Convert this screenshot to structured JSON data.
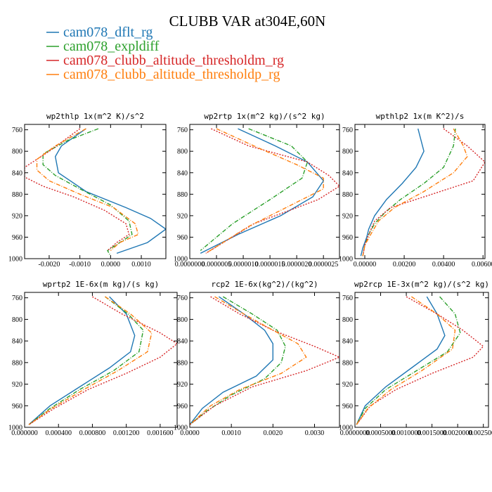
{
  "title": "CLUBB VAR at304E,60N",
  "legend": [
    {
      "name": "cam078_dflt_rg",
      "color": "#1f77b4",
      "dash": ""
    },
    {
      "name": "cam078_expldiff",
      "color": "#2ca02c",
      "dash": "6,2,1,2"
    },
    {
      "name": "cam078_clubb_altitude_thresholdm_rg",
      "color": "#d62728",
      "dash": "2,2"
    },
    {
      "name": "cam078_clubb_altitude_thresholdp_rg",
      "color": "#ff7f0e",
      "dash": "6,2,1,2"
    }
  ],
  "chart_data": [
    {
      "type": "line",
      "title": "wp2thlp  1x(m^2 K)/s^2",
      "xlim": [
        -0.0028,
        0.0018
      ],
      "ylim": [
        1000,
        750
      ],
      "xticks": [
        -0.002,
        -0.001,
        0.0,
        0.001
      ],
      "xtick_labels": [
        "-0.0020",
        "-0.0010",
        "0.0000",
        "0.0010"
      ],
      "yticks": [
        760,
        800,
        840,
        880,
        920,
        960,
        1000
      ],
      "series": [
        {
          "name": "cam078_dflt_rg",
          "x": [
            -0.0008,
            -0.0016,
            -0.0018,
            -0.0017,
            -0.0008,
            0.0005,
            0.0013,
            0.0018,
            0.0012,
            0.0002
          ],
          "y": [
            758,
            790,
            810,
            840,
            875,
            905,
            925,
            945,
            970,
            990
          ]
        },
        {
          "name": "cam078_expldiff",
          "x": [
            -0.0004,
            -0.0014,
            -0.0022,
            -0.0022,
            -0.0018,
            -0.001,
            0.0,
            0.0006,
            0.0007,
            0.0003,
            -0.0001,
            0.0
          ],
          "y": [
            758,
            780,
            805,
            825,
            845,
            870,
            900,
            930,
            955,
            970,
            985,
            995
          ]
        },
        {
          "name": "cam078_clubb_altitude_thresholdm_rg",
          "x": [
            -0.001,
            -0.002,
            -0.0028,
            -0.0028,
            -0.0022,
            -0.0012,
            -0.0002,
            0.0005,
            0.0006,
            0.0002,
            -0.0001
          ],
          "y": [
            758,
            800,
            830,
            848,
            865,
            885,
            910,
            935,
            955,
            970,
            985
          ]
        },
        {
          "name": "cam078_clubb_altitude_thresholdp_rg",
          "x": [
            -0.0008,
            -0.0018,
            -0.0024,
            -0.0024,
            -0.002,
            -0.001,
            0.0001,
            0.0008,
            0.0009,
            0.0003,
            0.0
          ],
          "y": [
            758,
            790,
            815,
            835,
            855,
            880,
            905,
            935,
            955,
            970,
            985
          ]
        }
      ]
    },
    {
      "type": "line",
      "title": "wp2rtp  1x(m^2 kg)/(s^2 kg)",
      "xlim": [
        0.0,
        2.8e-06
      ],
      "ylim": [
        1000,
        750
      ],
      "xticks": [
        0.0,
        5e-07,
        1e-06,
        1.5e-06,
        2e-06,
        2.5e-06
      ],
      "xtick_labels": [
        "0.0000000",
        "0.0000005",
        "0.0000010",
        "0.0000015",
        "0.0000020",
        "0.0000025"
      ],
      "yticks": [
        760,
        800,
        840,
        880,
        920,
        960,
        1000
      ],
      "series": [
        {
          "name": "cam078_dflt_rg",
          "x": [
            9e-07,
            1.6e-06,
            2.2e-06,
            2.5e-06,
            2.3e-06,
            1.7e-06,
            9e-07,
            2e-07
          ],
          "y": [
            758,
            790,
            820,
            855,
            885,
            920,
            955,
            990
          ]
        },
        {
          "name": "cam078_expldiff",
          "x": [
            1.1e-06,
            1.9e-06,
            2.2e-06,
            2.1e-06,
            1.5e-06,
            8e-07,
            2e-07
          ],
          "y": [
            758,
            790,
            820,
            850,
            890,
            935,
            985
          ]
        },
        {
          "name": "cam078_clubb_altitude_thresholdm_rg",
          "x": [
            4e-07,
            1.1e-06,
            2.2e-06,
            2.6e-06,
            2.8e-06,
            2.4e-06,
            1.2e-06,
            3e-07
          ],
          "y": [
            758,
            790,
            820,
            845,
            865,
            890,
            935,
            990
          ]
        },
        {
          "name": "cam078_clubb_altitude_thresholdp_rg",
          "x": [
            5e-07,
            1.2e-06,
            2e-06,
            2.5e-06,
            2.5e-06,
            2e-06,
            1.1e-06,
            3e-07
          ],
          "y": [
            758,
            790,
            825,
            850,
            870,
            895,
            940,
            990
          ]
        }
      ]
    },
    {
      "type": "line",
      "title": "wpthlp2  1x(m K^2)/s",
      "xlim": [
        -0.0005,
        0.0061
      ],
      "ylim": [
        1000,
        750
      ],
      "xticks": [
        0.0,
        0.002,
        0.004,
        0.006
      ],
      "xtick_labels": [
        "0.00000",
        "0.00200",
        "0.00400",
        "0.00600"
      ],
      "yticks": [
        760,
        800,
        840,
        880,
        920,
        960,
        1000
      ],
      "series": [
        {
          "name": "cam078_dflt_rg",
          "x": [
            0.0027,
            0.003,
            0.0026,
            0.0019,
            0.0011,
            0.0005,
            0.0002,
            0.0001,
            -0.0001,
            -0.0002
          ],
          "y": [
            758,
            800,
            830,
            860,
            890,
            920,
            945,
            960,
            980,
            995
          ]
        },
        {
          "name": "cam078_expldiff",
          "x": [
            0.0046,
            0.0045,
            0.004,
            0.003,
            0.0018,
            0.001,
            0.0005,
            0.0002,
            0.0,
            -0.0001
          ],
          "y": [
            758,
            790,
            830,
            860,
            890,
            915,
            935,
            955,
            975,
            995
          ]
        },
        {
          "name": "cam078_clubb_altitude_thresholdm_rg",
          "x": [
            0.004,
            0.0052,
            0.0061,
            0.0055,
            0.003,
            0.0013,
            0.0005,
            0.0002,
            0.0,
            -0.0001
          ],
          "y": [
            758,
            790,
            820,
            855,
            885,
            905,
            930,
            955,
            975,
            995
          ]
        },
        {
          "name": "cam078_clubb_altitude_thresholdp_rg",
          "x": [
            0.0045,
            0.005,
            0.0052,
            0.0045,
            0.003,
            0.0015,
            0.0007,
            0.0003,
            0.0,
            -0.0001
          ],
          "y": [
            758,
            790,
            810,
            840,
            875,
            905,
            930,
            955,
            975,
            995
          ]
        }
      ]
    },
    {
      "type": "line",
      "title": "wprtp2  1E-6x(m kg)/(s kg)",
      "xlim": [
        0.0,
        0.0018
      ],
      "ylim": [
        1000,
        750
      ],
      "xticks": [
        0.0,
        0.0004,
        0.0008,
        0.0012,
        0.0016
      ],
      "xtick_labels": [
        "0.000000",
        "0.000400",
        "0.000800",
        "0.001200",
        "0.001600"
      ],
      "yticks": [
        760,
        800,
        840,
        880,
        920,
        960,
        1000
      ],
      "series": [
        {
          "name": "cam078_dflt_rg",
          "x": [
            0.001,
            0.0012,
            0.0013,
            0.00125,
            0.001,
            0.00065,
            0.0003,
            5e-05
          ],
          "y": [
            758,
            790,
            830,
            860,
            890,
            925,
            960,
            995
          ]
        },
        {
          "name": "cam078_expldiff",
          "x": [
            0.00095,
            0.00122,
            0.0014,
            0.00135,
            0.00105,
            0.00065,
            0.0003,
            5e-05
          ],
          "y": [
            758,
            790,
            820,
            860,
            895,
            930,
            965,
            995
          ]
        },
        {
          "name": "cam078_clubb_altitude_thresholdm_rg",
          "x": [
            0.0008,
            0.00115,
            0.0016,
            0.0018,
            0.0016,
            0.0012,
            0.00075,
            0.00035,
            5e-05
          ],
          "y": [
            758,
            790,
            825,
            845,
            870,
            900,
            930,
            965,
            995
          ]
        },
        {
          "name": "cam078_clubb_altitude_thresholdp_rg",
          "x": [
            0.00095,
            0.00125,
            0.0015,
            0.00145,
            0.0011,
            0.0007,
            0.00032,
            5e-05
          ],
          "y": [
            758,
            790,
            825,
            860,
            895,
            930,
            965,
            995
          ]
        }
      ]
    },
    {
      "type": "line",
      "title": "rcp2  1E-6x(kg^2)/(kg^2)",
      "xlim": [
        0.0,
        0.0036
      ],
      "ylim": [
        1000,
        750
      ],
      "xticks": [
        0.0,
        0.001,
        0.002,
        0.003
      ],
      "xtick_labels": [
        "0.0000",
        "0.0010",
        "0.0020",
        "0.0030"
      ],
      "yticks": [
        760,
        800,
        840,
        880,
        920,
        960,
        1000
      ],
      "series": [
        {
          "name": "cam078_dflt_rg",
          "x": [
            0.0007,
            0.0013,
            0.0018,
            0.002,
            0.002,
            0.0016,
            0.0008,
            0.0003,
            0.0
          ],
          "y": [
            758,
            790,
            820,
            845,
            875,
            905,
            935,
            965,
            995
          ]
        },
        {
          "name": "cam078_expldiff",
          "x": [
            0.0008,
            0.0015,
            0.0021,
            0.0023,
            0.0022,
            0.0018,
            0.001,
            0.0004,
            0.0
          ],
          "y": [
            758,
            790,
            820,
            850,
            880,
            910,
            940,
            970,
            995
          ]
        },
        {
          "name": "cam078_clubb_altitude_thresholdm_rg",
          "x": [
            0.0005,
            0.0012,
            0.002,
            0.003,
            0.0036,
            0.0028,
            0.0015,
            0.0006,
            0.0
          ],
          "y": [
            758,
            790,
            820,
            850,
            870,
            895,
            925,
            960,
            995
          ]
        },
        {
          "name": "cam078_clubb_altitude_thresholdp_rg",
          "x": [
            0.0006,
            0.0013,
            0.002,
            0.0026,
            0.0028,
            0.0022,
            0.0012,
            0.0005,
            0.0
          ],
          "y": [
            758,
            790,
            820,
            845,
            870,
            900,
            930,
            960,
            995
          ]
        }
      ]
    },
    {
      "type": "line",
      "title": "wp2rcp  1E-3x(m^2 kg)/(s^2 kg)",
      "xlim": [
        0.0,
        0.0026
      ],
      "ylim": [
        1000,
        750
      ],
      "xticks": [
        0.0,
        0.0005,
        0.001,
        0.0015,
        0.002,
        0.0025
      ],
      "xtick_labels": [
        "0.0000000",
        "0.0005000",
        "0.0010000",
        "0.0015000",
        "0.0020000",
        "0.0025000"
      ],
      "yticks": [
        760,
        800,
        840,
        880,
        920,
        960,
        1000
      ],
      "series": [
        {
          "name": "cam078_dflt_rg",
          "x": [
            0.0014,
            0.0016,
            0.00175,
            0.0016,
            0.0011,
            0.0006,
            0.0002,
            3e-05
          ],
          "y": [
            758,
            790,
            830,
            855,
            890,
            925,
            960,
            995
          ]
        },
        {
          "name": "cam078_expldiff",
          "x": [
            0.00165,
            0.00195,
            0.00205,
            0.0018,
            0.0012,
            0.0006,
            0.0002,
            3e-05
          ],
          "y": [
            758,
            790,
            825,
            860,
            895,
            930,
            965,
            995
          ]
        },
        {
          "name": "cam078_clubb_altitude_thresholdm_rg",
          "x": [
            0.001,
            0.0016,
            0.0021,
            0.0025,
            0.0023,
            0.0015,
            0.0008,
            0.0003,
            3e-05
          ],
          "y": [
            758,
            790,
            820,
            850,
            870,
            900,
            930,
            960,
            995
          ]
        },
        {
          "name": "cam078_clubb_altitude_thresholdp_rg",
          "x": [
            0.0011,
            0.0016,
            0.00195,
            0.0019,
            0.0013,
            0.0007,
            0.00025,
            3e-05
          ],
          "y": [
            758,
            790,
            820,
            855,
            895,
            930,
            965,
            995
          ]
        }
      ]
    }
  ]
}
